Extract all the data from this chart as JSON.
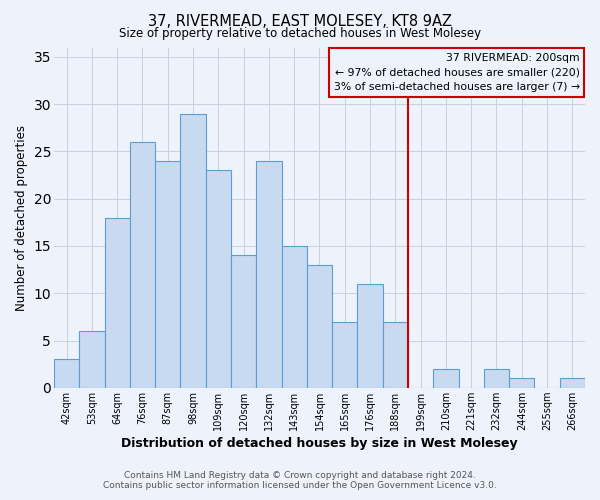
{
  "title": "37, RIVERMEAD, EAST MOLESEY, KT8 9AZ",
  "subtitle": "Size of property relative to detached houses in West Molesey",
  "xlabel": "Distribution of detached houses by size in West Molesey",
  "ylabel": "Number of detached properties",
  "bar_labels": [
    "42sqm",
    "53sqm",
    "64sqm",
    "76sqm",
    "87sqm",
    "98sqm",
    "109sqm",
    "120sqm",
    "132sqm",
    "143sqm",
    "154sqm",
    "165sqm",
    "176sqm",
    "188sqm",
    "199sqm",
    "210sqm",
    "221sqm",
    "232sqm",
    "244sqm",
    "255sqm",
    "266sqm"
  ],
  "bar_values": [
    3,
    6,
    18,
    26,
    24,
    29,
    23,
    14,
    24,
    15,
    13,
    7,
    11,
    7,
    0,
    2,
    0,
    2,
    1,
    0,
    1
  ],
  "bar_color": "#c8daf0",
  "bar_edge_color": "#5a9fd4",
  "grid_color": "#c8d0e0",
  "background_color": "#eef2fa",
  "annotation_title": "37 RIVERMEAD: 200sqm",
  "annotation_line1": "← 97% of detached houses are smaller (220)",
  "annotation_line2": "3% of semi-detached houses are larger (7) →",
  "vline_x_index": 14,
  "vline_color": "#cc0000",
  "annotation_box_color": "#cc0000",
  "ylim": [
    0,
    36
  ],
  "yticks": [
    0,
    5,
    10,
    15,
    20,
    25,
    30,
    35
  ],
  "footnote1": "Contains HM Land Registry data © Crown copyright and database right 2024.",
  "footnote2": "Contains public sector information licensed under the Open Government Licence v3.0."
}
